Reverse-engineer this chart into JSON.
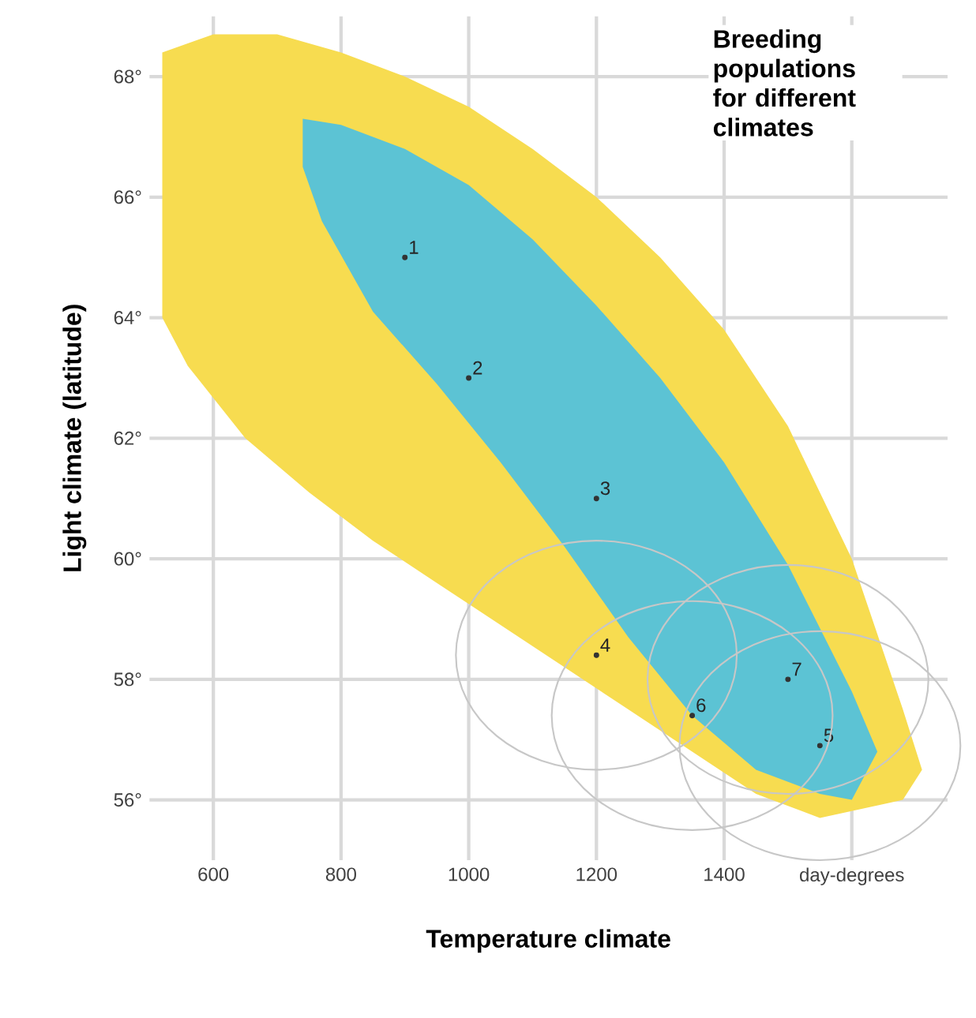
{
  "chart_data": {
    "type": "scatter",
    "title": "Breeding populations for different climates",
    "xlabel": "Temperature climate",
    "ylabel": "Light climate (latitude)",
    "xlim": [
      500,
      1750
    ],
    "ylim": [
      55,
      69
    ],
    "xticks": [
      600,
      800,
      1000,
      1200,
      1400,
      {
        "value": 1600,
        "label": "day-degrees"
      }
    ],
    "yticks": [
      {
        "value": 56,
        "label": "56°"
      },
      {
        "value": 58,
        "label": "58°"
      },
      {
        "value": 60,
        "label": "60°"
      },
      {
        "value": 62,
        "label": "62°"
      },
      {
        "value": 64,
        "label": "64°"
      },
      {
        "value": 66,
        "label": "66°"
      },
      {
        "value": 68,
        "label": "68°"
      }
    ],
    "grid": true,
    "marker": "circle",
    "series": [
      {
        "type": "area",
        "color": "#f7dc50",
        "marker": "none",
        "x": [
          520,
          600,
          700,
          800,
          900,
          1000,
          1100,
          1200,
          1300,
          1400,
          1500,
          1600,
          1680,
          1710,
          1680,
          1550,
          1450,
          1350,
          1250,
          1150,
          1050,
          950,
          850,
          750,
          650,
          560,
          520
        ],
        "values": [
          68.4,
          68.7,
          68.7,
          68.4,
          68,
          67.5,
          66.8,
          66,
          65,
          63.8,
          62.2,
          60,
          57.5,
          56.5,
          56,
          55.7,
          56.1,
          56.8,
          57.5,
          58.2,
          58.9,
          59.6,
          60.3,
          61.1,
          62,
          63.2,
          64
        ]
      },
      {
        "type": "area",
        "color": "#5cc3d4",
        "marker": "none",
        "x": [
          740,
          800,
          900,
          1000,
          1100,
          1200,
          1300,
          1400,
          1500,
          1600,
          1640,
          1600,
          1550,
          1450,
          1350,
          1250,
          1150,
          1050,
          950,
          850,
          770,
          740
        ],
        "values": [
          67.3,
          67.2,
          66.8,
          66.2,
          65.3,
          64.2,
          63,
          61.6,
          59.9,
          57.8,
          56.8,
          56,
          56.1,
          56.5,
          57.4,
          58.7,
          60.2,
          61.6,
          62.9,
          64.1,
          65.6,
          66.5
        ]
      },
      {
        "color": "#333333",
        "x": [
          900,
          1000,
          1200,
          1200,
          1550,
          1350,
          1500
        ],
        "values": [
          65,
          63,
          61,
          58.4,
          56.9,
          57.4,
          58
        ]
      }
    ],
    "annotations": [
      {
        "text": "1",
        "x": 900,
        "y": 65
      },
      {
        "text": "2",
        "x": 1000,
        "y": 63
      },
      {
        "text": "3",
        "x": 1200,
        "y": 61
      },
      {
        "text": "4",
        "x": 1200,
        "y": 58.4
      },
      {
        "text": "5",
        "x": 1550,
        "y": 56.9
      },
      {
        "text": "6",
        "x": 1350,
        "y": 57.4
      },
      {
        "text": "7",
        "x": 1500,
        "y": 58
      }
    ]
  }
}
